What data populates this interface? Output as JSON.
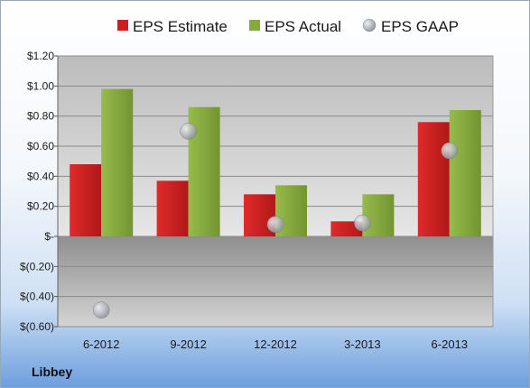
{
  "brand": "Libbey",
  "colors": {
    "estimate": "#cc1f1f",
    "actual": "#86aa3e",
    "gaap": "#c8ccd2"
  },
  "chart_data": {
    "type": "bar",
    "categories": [
      "6-2012",
      "9-2012",
      "12-2012",
      "3-2013",
      "6-2013"
    ],
    "series": [
      {
        "name": "EPS Estimate",
        "kind": "bar",
        "values": [
          0.48,
          0.37,
          0.28,
          0.1,
          0.76
        ]
      },
      {
        "name": "EPS Actual",
        "kind": "bar",
        "values": [
          0.98,
          0.86,
          0.34,
          0.28,
          0.84
        ]
      },
      {
        "name": "EPS GAAP",
        "kind": "scatter",
        "values": [
          -0.49,
          0.7,
          0.08,
          0.09,
          0.57
        ]
      }
    ],
    "y_ticks": [
      {
        "value": 1.2,
        "label": "$1.20"
      },
      {
        "value": 1.0,
        "label": "$1.00"
      },
      {
        "value": 0.8,
        "label": "$0.80"
      },
      {
        "value": 0.6,
        "label": "$0.60"
      },
      {
        "value": 0.4,
        "label": "$0.40"
      },
      {
        "value": 0.2,
        "label": "$0.20"
      },
      {
        "value": 0.0,
        "label": "$-"
      },
      {
        "value": -0.2,
        "label": "$(0.20)"
      },
      {
        "value": -0.4,
        "label": "$(0.40)"
      },
      {
        "value": -0.6,
        "label": "$(0.60)"
      }
    ],
    "ylim": [
      -0.6,
      1.2
    ],
    "grid": true,
    "legend_position": "top"
  }
}
